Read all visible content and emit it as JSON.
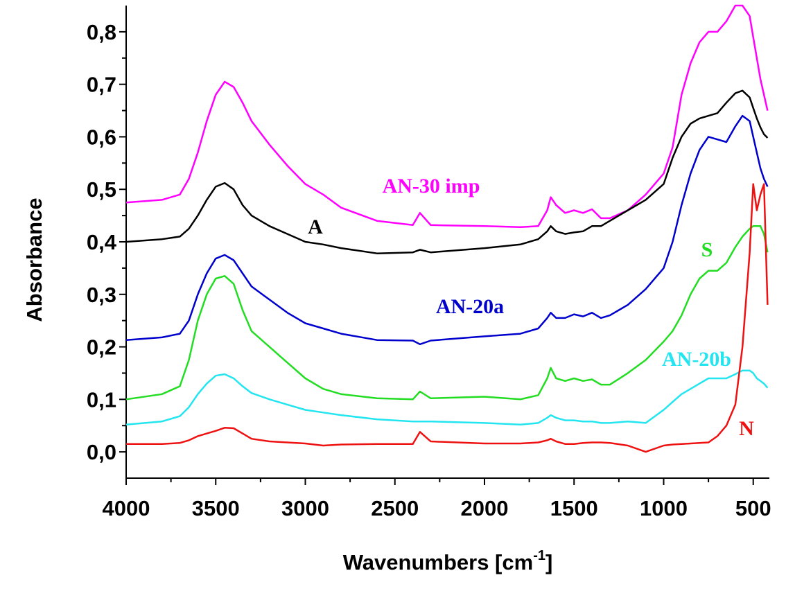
{
  "chart_data": {
    "type": "line",
    "y_label": "Absorbance",
    "x_label": [
      "Wavenumbers [cm",
      "-1",
      "]"
    ],
    "xlim": [
      4000,
      410
    ],
    "ylim": [
      -0.05,
      0.85
    ],
    "xticks": [
      4000,
      3500,
      3000,
      2500,
      2000,
      1500,
      1000,
      500
    ],
    "yticks": [
      {
        "value": 0.0,
        "label": "0,0"
      },
      {
        "value": 0.1,
        "label": "0,1"
      },
      {
        "value": 0.2,
        "label": "0,2"
      },
      {
        "value": 0.3,
        "label": "0,3"
      },
      {
        "value": 0.4,
        "label": "0,4"
      },
      {
        "value": 0.5,
        "label": "0,5"
      },
      {
        "value": 0.6,
        "label": "0,6"
      },
      {
        "value": 0.7,
        "label": "0,7"
      },
      {
        "value": 0.8,
        "label": "0,8"
      }
    ],
    "x": [
      4000,
      3800,
      3700,
      3650,
      3600,
      3550,
      3500,
      3450,
      3400,
      3350,
      3300,
      3200,
      3100,
      3000,
      2900,
      2800,
      2600,
      2400,
      2360,
      2300,
      2000,
      1800,
      1700,
      1650,
      1630,
      1600,
      1550,
      1500,
      1450,
      1400,
      1350,
      1300,
      1200,
      1100,
      1000,
      950,
      900,
      850,
      800,
      750,
      700,
      650,
      600,
      560,
      520,
      500,
      480,
      460,
      440,
      420
    ],
    "series": [
      {
        "name": "AN-30 imp",
        "color": "#ff00ff",
        "values": [
          0.475,
          0.48,
          0.49,
          0.52,
          0.57,
          0.63,
          0.68,
          0.705,
          0.695,
          0.665,
          0.63,
          0.585,
          0.545,
          0.51,
          0.49,
          0.465,
          0.44,
          0.432,
          0.455,
          0.432,
          0.43,
          0.428,
          0.43,
          0.46,
          0.485,
          0.47,
          0.455,
          0.46,
          0.455,
          0.462,
          0.445,
          0.445,
          0.46,
          0.49,
          0.53,
          0.58,
          0.68,
          0.74,
          0.78,
          0.8,
          0.8,
          0.82,
          0.85,
          0.85,
          0.83,
          0.79,
          0.75,
          0.71,
          0.68,
          0.65
        ]
      },
      {
        "name": "A",
        "color": "#000000",
        "values": [
          0.4,
          0.405,
          0.41,
          0.425,
          0.45,
          0.48,
          0.505,
          0.512,
          0.5,
          0.47,
          0.45,
          0.43,
          0.415,
          0.4,
          0.395,
          0.388,
          0.378,
          0.38,
          0.385,
          0.38,
          0.388,
          0.395,
          0.405,
          0.42,
          0.43,
          0.42,
          0.415,
          0.418,
          0.42,
          0.43,
          0.43,
          0.44,
          0.46,
          0.48,
          0.51,
          0.56,
          0.6,
          0.625,
          0.635,
          0.64,
          0.645,
          0.665,
          0.683,
          0.688,
          0.675,
          0.655,
          0.635,
          0.618,
          0.605,
          0.598
        ]
      },
      {
        "name": "AN-20a",
        "color": "#0000cc",
        "values": [
          0.213,
          0.218,
          0.225,
          0.25,
          0.3,
          0.34,
          0.368,
          0.375,
          0.365,
          0.34,
          0.315,
          0.29,
          0.265,
          0.245,
          0.235,
          0.225,
          0.213,
          0.212,
          0.205,
          0.212,
          0.22,
          0.225,
          0.235,
          0.255,
          0.265,
          0.255,
          0.255,
          0.262,
          0.258,
          0.265,
          0.255,
          0.26,
          0.28,
          0.31,
          0.35,
          0.4,
          0.47,
          0.53,
          0.575,
          0.6,
          0.595,
          0.59,
          0.62,
          0.64,
          0.63,
          0.6,
          0.57,
          0.54,
          0.52,
          0.505
        ]
      },
      {
        "name": "S",
        "color": "#22dd22",
        "values": [
          0.1,
          0.11,
          0.125,
          0.175,
          0.25,
          0.3,
          0.33,
          0.335,
          0.32,
          0.27,
          0.23,
          0.2,
          0.17,
          0.14,
          0.12,
          0.11,
          0.102,
          0.1,
          0.115,
          0.102,
          0.105,
          0.1,
          0.108,
          0.14,
          0.16,
          0.14,
          0.135,
          0.14,
          0.135,
          0.138,
          0.128,
          0.128,
          0.15,
          0.175,
          0.21,
          0.23,
          0.26,
          0.3,
          0.33,
          0.345,
          0.345,
          0.36,
          0.39,
          0.41,
          0.425,
          0.43,
          0.43,
          0.43,
          0.415,
          0.38
        ]
      },
      {
        "name": "AN-20b",
        "color": "#22e5f0",
        "values": [
          0.052,
          0.058,
          0.068,
          0.085,
          0.11,
          0.13,
          0.145,
          0.148,
          0.14,
          0.125,
          0.112,
          0.1,
          0.09,
          0.08,
          0.075,
          0.07,
          0.062,
          0.058,
          0.058,
          0.058,
          0.055,
          0.052,
          0.055,
          0.065,
          0.07,
          0.065,
          0.06,
          0.06,
          0.058,
          0.058,
          0.055,
          0.055,
          0.058,
          0.055,
          0.08,
          0.095,
          0.11,
          0.12,
          0.13,
          0.14,
          0.14,
          0.14,
          0.148,
          0.155,
          0.155,
          0.15,
          0.14,
          0.135,
          0.13,
          0.122
        ]
      },
      {
        "name": "N",
        "color": "#ee1111",
        "values": [
          0.015,
          0.015,
          0.017,
          0.022,
          0.03,
          0.035,
          0.04,
          0.046,
          0.045,
          0.035,
          0.025,
          0.02,
          0.018,
          0.016,
          0.012,
          0.014,
          0.015,
          0.015,
          0.038,
          0.02,
          0.016,
          0.016,
          0.018,
          0.022,
          0.025,
          0.02,
          0.015,
          0.015,
          0.017,
          0.018,
          0.018,
          0.017,
          0.012,
          0.0,
          0.012,
          0.014,
          0.015,
          0.016,
          0.017,
          0.018,
          0.03,
          0.05,
          0.09,
          0.2,
          0.38,
          0.51,
          0.46,
          0.49,
          0.51,
          0.28
        ]
      }
    ]
  }
}
